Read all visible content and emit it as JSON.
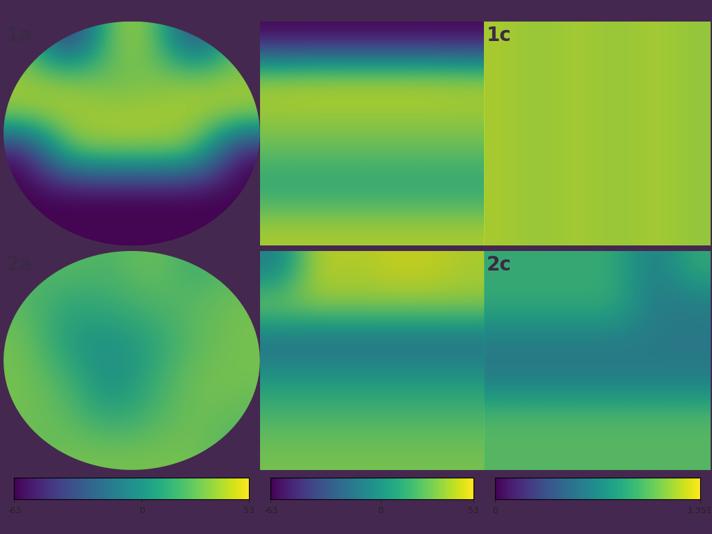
{
  "chart_data": {
    "type": "heatmap",
    "columns": [
      {
        "colorbar": {
          "range": [
            -63,
            53
          ],
          "ticks": [
            -63,
            0,
            53
          ]
        },
        "panels": [
          {
            "label": "1a",
            "cells": [
              [
                30,
                -63,
                35,
                35,
                -50,
                30
              ],
              [
                35,
                35,
                25,
                30,
                35,
                35
              ],
              [
                40,
                40,
                40,
                40,
                40,
                40
              ],
              [
                -63,
                30,
                35,
                35,
                30,
                -63
              ],
              [
                -63,
                -63,
                -63,
                -63,
                -63,
                -63
              ],
              [
                -63,
                -63,
                -63,
                -63,
                -63,
                -63
              ]
            ]
          },
          {
            "label": "2a",
            "cells": [
              [
                20,
                25,
                20,
                30,
                15,
                25
              ],
              [
                25,
                10,
                15,
                20,
                25,
                30
              ],
              [
                30,
                5,
                0,
                10,
                25,
                30
              ],
              [
                30,
                20,
                -5,
                15,
                30,
                30
              ],
              [
                30,
                25,
                10,
                20,
                30,
                25
              ],
              [
                25,
                30,
                30,
                30,
                30,
                20
              ]
            ]
          }
        ]
      },
      {
        "colorbar": {
          "range": [
            -63,
            53
          ],
          "ticks": [
            -63,
            0,
            53
          ]
        },
        "panels": [
          {
            "cells": [
              [
                -63,
                -63,
                -63,
                -63,
                -63,
                -63
              ],
              [
                40,
                42,
                42,
                42,
                42,
                40
              ],
              [
                38,
                38,
                38,
                38,
                38,
                38
              ],
              [
                25,
                25,
                25,
                25,
                25,
                25
              ],
              [
                10,
                10,
                10,
                10,
                10,
                10
              ],
              [
                40,
                40,
                40,
                40,
                40,
                40
              ]
            ]
          },
          {
            "cells": [
              [
                -10,
                45,
                40,
                45,
                45,
                40
              ],
              [
                35,
                35,
                35,
                35,
                35,
                35
              ],
              [
                -20,
                -20,
                -20,
                -20,
                -20,
                -20
              ],
              [
                5,
                5,
                5,
                5,
                5,
                5
              ],
              [
                20,
                20,
                20,
                20,
                20,
                20
              ],
              [
                30,
                30,
                30,
                30,
                30,
                30
              ]
            ]
          }
        ]
      },
      {
        "colorbar": {
          "range": [
            0,
            1.351
          ],
          "ticks": [
            0,
            1.351
          ]
        },
        "panels": [
          {
            "label": "1c",
            "cells": [
              [
                1.2,
                1.15,
                1.2,
                1.15,
                1.2,
                1.15
              ],
              [
                1.2,
                1.15,
                1.2,
                1.15,
                1.2,
                1.15
              ],
              [
                1.2,
                1.15,
                1.2,
                1.15,
                1.2,
                1.15
              ],
              [
                1.2,
                1.15,
                1.2,
                1.15,
                1.2,
                1.15
              ],
              [
                1.2,
                1.15,
                1.2,
                1.15,
                1.2,
                1.15
              ],
              [
                1.2,
                1.15,
                1.2,
                1.15,
                1.2,
                1.15
              ]
            ]
          },
          {
            "label": "2c",
            "cells": [
              [
                0.9,
                0.9,
                0.9,
                0.9,
                0.6,
                0.9
              ],
              [
                0.9,
                0.9,
                0.9,
                0.9,
                0.6,
                0.6
              ],
              [
                0.6,
                0.6,
                0.6,
                0.6,
                0.6,
                0.6
              ],
              [
                0.6,
                0.6,
                0.6,
                0.6,
                0.6,
                0.6
              ],
              [
                1.0,
                1.0,
                1.0,
                1.0,
                1.0,
                1.0
              ],
              [
                1.0,
                1.0,
                1.0,
                1.0,
                1.0,
                1.0
              ]
            ]
          }
        ]
      }
    ]
  }
}
